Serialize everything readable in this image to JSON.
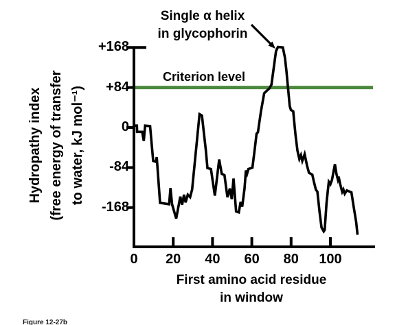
{
  "figure": {
    "caption": "Figure 12-27b",
    "background": "#ffffff"
  },
  "annotation": {
    "line1": "Single α helix",
    "line2": "in glycophorin"
  },
  "criterion": {
    "label": "Criterion level",
    "value": 84,
    "color": "#4c8a3e"
  },
  "y_axis": {
    "title_lines": [
      "Hydropathy index",
      "(free energy of transfer",
      "to water, kJ mol⁻¹)"
    ],
    "tick_labels": [
      "+168",
      "+84",
      "0",
      "-84",
      "-168"
    ],
    "tick_values": [
      168,
      84,
      0,
      -84,
      -168
    ]
  },
  "x_axis": {
    "title_lines": [
      "First amino acid residue",
      "in window"
    ],
    "tick_labels": [
      "0",
      "20",
      "40",
      "60",
      "80",
      "100"
    ],
    "tick_values": [
      0,
      20,
      40,
      60,
      80,
      100
    ]
  },
  "chart_data": {
    "type": "line",
    "title": "",
    "xlabel": "First amino acid residue in window",
    "ylabel": "Hydropathy index (free energy of transfer to water, kJ mol⁻¹)",
    "xlim": [
      0,
      122
    ],
    "ylim": [
      -255,
      190
    ],
    "x_ticks": [
      0,
      20,
      40,
      60,
      80,
      100
    ],
    "y_ticks": [
      168,
      84,
      0,
      -84,
      -168
    ],
    "grid": false,
    "legend": false,
    "line_color": "#000000",
    "criterion_level": 84,
    "criterion_color": "#4c8a3e",
    "annotations": [
      {
        "text": "Single α helix in glycophorin",
        "arrow_points_to": [
          74,
          168
        ]
      },
      {
        "text": "Criterion level",
        "at_y": 84
      }
    ],
    "series": [
      {
        "name": "Glycophorin hydropathy index",
        "points": [
          [
            0,
            4
          ],
          [
            1.5,
            4
          ],
          [
            1.6,
            -9
          ],
          [
            4.2,
            -9
          ],
          [
            5,
            -28
          ],
          [
            5.7,
            4
          ],
          [
            8.2,
            3
          ],
          [
            9.8,
            -70
          ],
          [
            11.2,
            -72
          ],
          [
            11.6,
            -62
          ],
          [
            13.3,
            -158
          ],
          [
            17.9,
            -161
          ],
          [
            18.6,
            -127
          ],
          [
            19.4,
            -161
          ],
          [
            21.5,
            -191
          ],
          [
            23.6,
            -145
          ],
          [
            24.5,
            -162
          ],
          [
            25.5,
            -141
          ],
          [
            26.3,
            -157
          ],
          [
            27.4,
            -141
          ],
          [
            28.6,
            -146
          ],
          [
            29.6,
            -130
          ],
          [
            33.4,
            28
          ],
          [
            34.6,
            25
          ],
          [
            36.6,
            -48
          ],
          [
            37.4,
            -85
          ],
          [
            39.2,
            -87
          ],
          [
            41.2,
            -143
          ],
          [
            43.4,
            -67
          ],
          [
            44.7,
            -97
          ],
          [
            46.1,
            -100
          ],
          [
            47.6,
            -146
          ],
          [
            48.8,
            -128
          ],
          [
            49.8,
            -150
          ],
          [
            50.7,
            -107
          ],
          [
            52,
            -176
          ],
          [
            53.4,
            -178
          ],
          [
            54.3,
            -156
          ],
          [
            55.1,
            -166
          ],
          [
            56.3,
            -128
          ],
          [
            57,
            -90
          ],
          [
            57.6,
            -97
          ],
          [
            58.3,
            -87
          ],
          [
            60.3,
            -84
          ],
          [
            61.5,
            -45
          ],
          [
            62.4,
            -13
          ],
          [
            63.1,
            -10
          ],
          [
            64.6,
            33
          ],
          [
            66.3,
            72
          ],
          [
            67.3,
            76
          ],
          [
            68.9,
            82
          ],
          [
            70,
            90
          ],
          [
            72.3,
            160
          ],
          [
            73.3,
            169
          ],
          [
            75.8,
            168
          ],
          [
            76.9,
            146
          ],
          [
            77.6,
            120
          ],
          [
            78.4,
            85
          ],
          [
            79.3,
            45
          ],
          [
            79.9,
            37
          ],
          [
            81.1,
            34
          ],
          [
            82.2,
            -14
          ],
          [
            83.2,
            -48
          ],
          [
            84.2,
            -66
          ],
          [
            85,
            -58
          ],
          [
            85.7,
            -70
          ],
          [
            86.9,
            -56
          ],
          [
            88.1,
            -80
          ],
          [
            89.1,
            -95
          ],
          [
            90.8,
            -99
          ],
          [
            91.5,
            -112
          ],
          [
            92.6,
            -130
          ],
          [
            93.4,
            -135
          ],
          [
            94.5,
            -178
          ],
          [
            95.5,
            -210
          ],
          [
            96.6,
            -218
          ],
          [
            97.1,
            -215
          ],
          [
            98,
            -160
          ],
          [
            98.7,
            -132
          ],
          [
            99.2,
            -114
          ],
          [
            100,
            -119
          ],
          [
            100.8,
            -110
          ],
          [
            102.3,
            -77
          ],
          [
            103.1,
            -98
          ],
          [
            103.8,
            -109
          ],
          [
            104.2,
            -103
          ],
          [
            105,
            -119
          ],
          [
            106,
            -135
          ],
          [
            106.6,
            -130
          ],
          [
            107.3,
            -139
          ],
          [
            108.4,
            -132
          ],
          [
            110.7,
            -136
          ],
          [
            112,
            -170
          ],
          [
            113.1,
            -198
          ],
          [
            113.8,
            -225
          ]
        ]
      }
    ]
  }
}
